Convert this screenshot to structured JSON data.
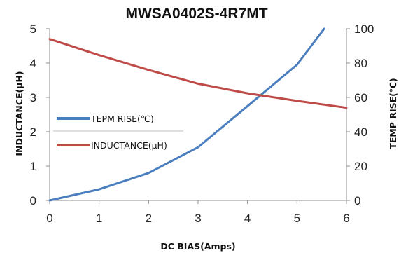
{
  "chart_data": {
    "type": "line",
    "title": "MWSA0402S-4R7MT",
    "xlabel": "DC BIAS(Amps)",
    "ylabel": "INDUCTANCE(μH)",
    "y2label": "TEMP RISE(℃)",
    "xlim": [
      0,
      6
    ],
    "ylim": [
      0,
      5
    ],
    "y2lim": [
      0,
      100
    ],
    "x_ticks": [
      "0",
      "1",
      "2",
      "3",
      "4",
      "5",
      "6"
    ],
    "y_ticks": [
      "0",
      "1",
      "2",
      "3",
      "4",
      "5"
    ],
    "y2_ticks": [
      "0",
      "20",
      "40",
      "60",
      "80",
      "100"
    ],
    "grid": false,
    "legend_position": "left",
    "series": [
      {
        "name": "TEPM RISE(℃)",
        "axis": "right",
        "color": "#4a7ebf",
        "x": [
          0,
          1,
          2,
          3,
          4,
          5,
          5.55
        ],
        "y": [
          0,
          6.5,
          16,
          31,
          55,
          79,
          100
        ]
      },
      {
        "name": "INDUCTANCE(μH)",
        "axis": "left",
        "color": "#be4b48",
        "x": [
          0,
          1,
          2,
          3,
          4,
          5,
          6
        ],
        "y": [
          4.7,
          4.23,
          3.8,
          3.4,
          3.12,
          2.9,
          2.7
        ]
      }
    ]
  }
}
